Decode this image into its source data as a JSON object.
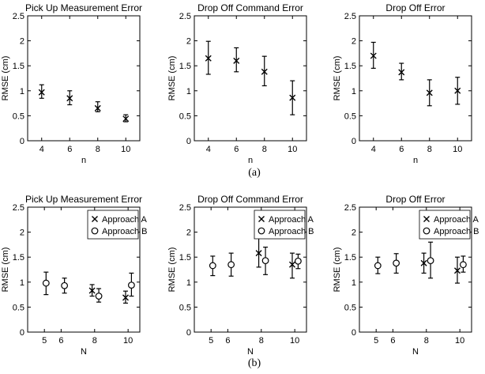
{
  "captions": [
    "(a)",
    "(b)"
  ],
  "chart_data": [
    {
      "type": "scatter",
      "panel": "a1",
      "title": "Pick Up Measurement Error",
      "xlabel": "n",
      "ylabel": "RMSE (cm)",
      "xlim": [
        3,
        11
      ],
      "ylim": [
        0,
        2.5
      ],
      "xticks": [
        4,
        6,
        8,
        10
      ],
      "yticks": [
        0,
        0.5,
        1,
        1.5,
        2,
        2.5
      ],
      "grid": false,
      "legend": [],
      "series": [
        {
          "marker": "x",
          "x": [
            4,
            6,
            8,
            10
          ],
          "y": [
            0.97,
            0.85,
            0.65,
            0.44
          ],
          "err_low": [
            0.85,
            0.72,
            0.58,
            0.38
          ],
          "err_high": [
            1.12,
            1.0,
            0.78,
            0.52
          ]
        }
      ]
    },
    {
      "type": "scatter",
      "panel": "a2",
      "title": "Drop Off Command Error",
      "xlabel": "n",
      "ylabel": "RMSE (cm)",
      "xlim": [
        3,
        11
      ],
      "ylim": [
        0,
        2.5
      ],
      "xticks": [
        4,
        6,
        8,
        10
      ],
      "yticks": [
        0,
        0.5,
        1,
        1.5,
        2,
        2.5
      ],
      "grid": false,
      "legend": [],
      "series": [
        {
          "marker": "x",
          "x": [
            4,
            6,
            8,
            10
          ],
          "y": [
            1.65,
            1.6,
            1.38,
            0.86
          ],
          "err_low": [
            1.33,
            1.38,
            1.1,
            0.52
          ],
          "err_high": [
            1.99,
            1.86,
            1.69,
            1.2
          ]
        }
      ]
    },
    {
      "type": "scatter",
      "panel": "a3",
      "title": "Drop Off Error",
      "xlabel": "n",
      "ylabel": "RMSE (cm)",
      "xlim": [
        3,
        11
      ],
      "ylim": [
        0,
        2.5
      ],
      "xticks": [
        4,
        6,
        8,
        10
      ],
      "yticks": [
        0,
        0.5,
        1,
        1.5,
        2,
        2.5
      ],
      "grid": false,
      "legend": [],
      "series": [
        {
          "marker": "x",
          "x": [
            4,
            6,
            8,
            10
          ],
          "y": [
            1.7,
            1.37,
            0.96,
            1.0
          ],
          "err_low": [
            1.45,
            1.22,
            0.7,
            0.73
          ],
          "err_high": [
            1.97,
            1.55,
            1.22,
            1.27
          ]
        }
      ]
    },
    {
      "type": "scatter",
      "panel": "b1",
      "title": "Pick Up Measurement Error",
      "xlabel": "N",
      "ylabel": "RMSE (cm)",
      "xlim": [
        4,
        10.7
      ],
      "ylim": [
        0,
        2.5
      ],
      "xticks": [
        5,
        6,
        8,
        10
      ],
      "yticks": [
        0,
        0.5,
        1,
        1.5,
        2,
        2.5
      ],
      "grid": false,
      "legend": [
        "Approach A",
        "Approach B"
      ],
      "legend_position": "top-right",
      "series": [
        {
          "name": "Approach A",
          "marker": "x",
          "x": [
            7.85,
            9.85
          ],
          "y": [
            0.83,
            0.69
          ],
          "err_low": [
            0.72,
            0.58
          ],
          "err_high": [
            0.95,
            0.82
          ]
        },
        {
          "name": "Approach B",
          "marker": "o",
          "x": [
            5.1,
            6.2,
            8.25,
            10.2
          ],
          "y": [
            0.98,
            0.93,
            0.72,
            0.94
          ],
          "err_low": [
            0.75,
            0.78,
            0.6,
            0.72
          ],
          "err_high": [
            1.2,
            1.08,
            0.87,
            1.18
          ]
        }
      ]
    },
    {
      "type": "scatter",
      "panel": "b2",
      "title": "Drop Off Command Error",
      "xlabel": "N",
      "ylabel": "RMSE (cm)",
      "xlim": [
        4,
        10.7
      ],
      "ylim": [
        0,
        2.5
      ],
      "xticks": [
        5,
        6,
        8,
        10
      ],
      "yticks": [
        0,
        0.5,
        1,
        1.5,
        2,
        2.5
      ],
      "grid": false,
      "legend": [
        "Approach A",
        "Approach B"
      ],
      "legend_position": "top-right",
      "series": [
        {
          "name": "Approach A",
          "marker": "x",
          "x": [
            7.85,
            9.85
          ],
          "y": [
            1.58,
            1.35
          ],
          "err_low": [
            1.3,
            1.08
          ],
          "err_high": [
            1.88,
            1.58
          ]
        },
        {
          "name": "Approach B",
          "marker": "o",
          "x": [
            5.1,
            6.2,
            8.25,
            10.2
          ],
          "y": [
            1.33,
            1.35,
            1.43,
            1.42
          ],
          "err_low": [
            1.13,
            1.12,
            1.15,
            1.27
          ],
          "err_high": [
            1.52,
            1.58,
            1.7,
            1.56
          ]
        }
      ]
    },
    {
      "type": "scatter",
      "panel": "b3",
      "title": "Drop Off Error",
      "xlabel": "N",
      "ylabel": "RMSE (cm)",
      "xlim": [
        4,
        10.7
      ],
      "ylim": [
        0,
        2.5
      ],
      "xticks": [
        5,
        6,
        8,
        10
      ],
      "yticks": [
        0,
        0.5,
        1,
        1.5,
        2,
        2.5
      ],
      "grid": false,
      "legend": [
        "Approach A",
        "Approach B"
      ],
      "legend_position": "top-right",
      "series": [
        {
          "name": "Approach A",
          "marker": "x",
          "x": [
            7.85,
            9.85
          ],
          "y": [
            1.38,
            1.23
          ],
          "err_low": [
            1.18,
            0.98
          ],
          "err_high": [
            1.58,
            1.5
          ]
        },
        {
          "name": "Approach B",
          "marker": "o",
          "x": [
            5.1,
            6.2,
            8.25,
            10.2
          ],
          "y": [
            1.33,
            1.38,
            1.43,
            1.35
          ],
          "err_low": [
            1.17,
            1.18,
            1.08,
            1.2
          ],
          "err_high": [
            1.5,
            1.57,
            1.8,
            1.52
          ]
        }
      ]
    }
  ]
}
